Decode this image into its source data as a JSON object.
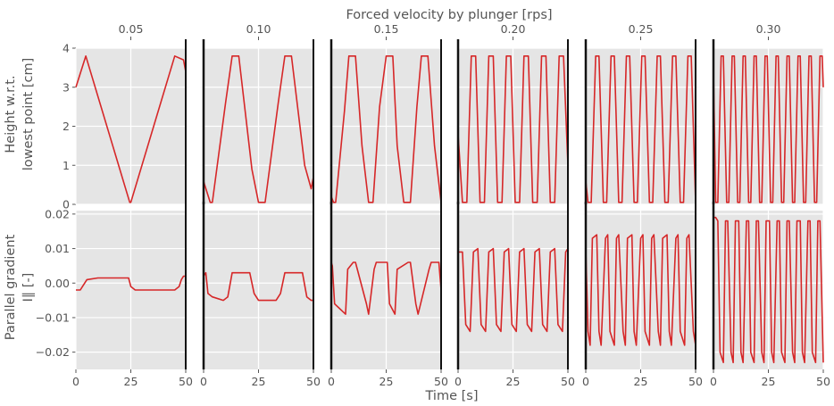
{
  "chart_data": {
    "type": "line",
    "title": "Forced velocity by plunger [rps]",
    "xlabel": "Time [s]",
    "row_ylabels": [
      [
        "Height w.r.t.",
        "lowest point [cm]"
      ],
      [
        "Parallel gradient",
        "I∥ [-]"
      ]
    ],
    "columns": [
      "0.05",
      "0.10",
      "0.15",
      "0.20",
      "0.25",
      "0.30"
    ],
    "xlim": [
      0,
      50
    ],
    "xticks": [
      "0",
      "25",
      "50"
    ],
    "height": {
      "ylim": [
        0,
        4
      ],
      "yticks": [
        "0",
        "1",
        "2",
        "3",
        "4"
      ],
      "series": [
        {
          "x": [
            0,
            4.5,
            24.5,
            25,
            45,
            49,
            50
          ],
          "y": [
            3.0,
            3.8,
            0.05,
            0.05,
            3.8,
            3.7,
            3.4
          ]
        },
        {
          "x": [
            0,
            0.5,
            3,
            4,
            10,
            13,
            16,
            22,
            25,
            28,
            34,
            37,
            40,
            46,
            49,
            50
          ],
          "y": [
            0.6,
            0.5,
            0.05,
            0.05,
            2.6,
            3.8,
            3.8,
            0.9,
            0.05,
            0.05,
            2.6,
            3.8,
            3.8,
            1.0,
            0.4,
            0.7
          ]
        },
        {
          "x": [
            0,
            1,
            2,
            6,
            8,
            11,
            14,
            17,
            19,
            22,
            25,
            28,
            30,
            33,
            36,
            39,
            41,
            44,
            47,
            50
          ],
          "y": [
            0.2,
            0.05,
            0.05,
            2.4,
            3.8,
            3.8,
            1.5,
            0.05,
            0.05,
            2.5,
            3.8,
            3.8,
            1.5,
            0.05,
            0.05,
            2.5,
            3.8,
            3.8,
            1.5,
            0.05
          ]
        },
        {
          "x": [
            0,
            2,
            4,
            6,
            8,
            10,
            12,
            14,
            16,
            18,
            20,
            22,
            24,
            26,
            28,
            30,
            32,
            34,
            36,
            38,
            40,
            42,
            44,
            46,
            48,
            50
          ],
          "y": [
            1.8,
            0.05,
            0.05,
            3.8,
            3.8,
            0.05,
            0.05,
            3.8,
            3.8,
            0.05,
            0.05,
            3.8,
            3.8,
            0.05,
            0.05,
            3.8,
            3.8,
            0.05,
            0.05,
            3.8,
            3.8,
            0.05,
            0.05,
            3.8,
            3.8,
            1.0
          ]
        },
        {
          "x": [
            0,
            1,
            2.5,
            4.5,
            6,
            8,
            9.5,
            11.5,
            13,
            15,
            16.5,
            18.5,
            20,
            22,
            23.5,
            25.5,
            27,
            29,
            30.5,
            32.5,
            34,
            36,
            37.5,
            39.5,
            41,
            43,
            44.5,
            46.5,
            48,
            50
          ],
          "y": [
            0.6,
            0.05,
            0.05,
            3.8,
            3.8,
            0.05,
            0.05,
            3.8,
            3.8,
            0.05,
            0.05,
            3.8,
            3.8,
            0.05,
            0.05,
            3.8,
            3.8,
            0.05,
            0.05,
            3.8,
            3.8,
            0.05,
            0.05,
            3.8,
            3.8,
            0.05,
            0.05,
            3.8,
            3.8,
            0.05
          ]
        },
        {
          "x": [
            0,
            1,
            2,
            3.5,
            4.5,
            6,
            7,
            8.5,
            9.5,
            11,
            12,
            13.5,
            14.5,
            16,
            17,
            18.5,
            19.5,
            21,
            22,
            23.5,
            24.5,
            26,
            27,
            28.5,
            29.5,
            31,
            32,
            33.5,
            34.5,
            36,
            37,
            38.5,
            39.5,
            41,
            42,
            43.5,
            44.5,
            46,
            47,
            48.5,
            49.5,
            50
          ],
          "y": [
            3.4,
            0.05,
            0.05,
            3.8,
            3.8,
            0.05,
            0.05,
            3.8,
            3.8,
            0.05,
            0.05,
            3.8,
            3.8,
            0.05,
            0.05,
            3.8,
            3.8,
            0.05,
            0.05,
            3.8,
            3.8,
            0.05,
            0.05,
            3.8,
            3.8,
            0.05,
            0.05,
            3.8,
            3.8,
            0.05,
            0.05,
            3.8,
            3.8,
            0.05,
            0.05,
            3.8,
            3.8,
            0.05,
            0.05,
            3.8,
            3.8,
            3.0
          ]
        }
      ]
    },
    "gradient": {
      "ylim": [
        -0.025,
        0.021
      ],
      "yticks": [
        {
          "v": 0.02,
          "label": "0.02"
        },
        {
          "v": 0.01,
          "label": "0.01"
        },
        {
          "v": 0.0,
          "label": "0.00"
        },
        {
          "v": -0.01,
          "label": "−0.01"
        },
        {
          "v": -0.02,
          "label": "−0.02"
        }
      ],
      "series": [
        {
          "x": [
            0,
            2,
            3,
            5,
            10,
            24,
            25,
            27,
            30,
            45,
            47,
            48,
            49,
            50
          ],
          "y": [
            -0.002,
            -0.002,
            -0.001,
            0.001,
            0.0015,
            0.0015,
            -0.001,
            -0.002,
            -0.002,
            -0.002,
            -0.001,
            0.001,
            0.002,
            0.002
          ]
        },
        {
          "x": [
            0,
            1,
            2,
            4,
            9,
            11,
            13,
            21,
            23,
            25,
            33,
            35,
            37,
            45,
            47,
            49,
            50
          ],
          "y": [
            0.002,
            0.003,
            -0.003,
            -0.004,
            -0.005,
            -0.004,
            0.003,
            0.003,
            -0.003,
            -0.005,
            -0.005,
            -0.003,
            0.003,
            0.003,
            -0.004,
            -0.005,
            -0.005
          ]
        },
        {
          "x": [
            0,
            0.5,
            1.5,
            6.5,
            7.5,
            10,
            11,
            16,
            17,
            19.5,
            20.5,
            25.5,
            26.5,
            29,
            30,
            35,
            36,
            38.5,
            39.5,
            44.5,
            45.5,
            49,
            50
          ],
          "y": [
            0.006,
            0.005,
            -0.006,
            -0.009,
            0.004,
            0.006,
            0.006,
            -0.006,
            -0.009,
            0.004,
            0.006,
            0.006,
            -0.006,
            -0.009,
            0.004,
            0.006,
            0.006,
            -0.006,
            -0.009,
            0.004,
            0.006,
            0.006,
            -0.002
          ]
        },
        {
          "x": [
            0,
            2,
            3.5,
            5.5,
            7,
            9,
            10.5,
            12.5,
            14,
            16,
            17.5,
            19.5,
            21,
            23,
            24.5,
            26.5,
            28,
            30,
            31.5,
            33.5,
            35,
            37,
            38.5,
            40.5,
            42,
            44,
            45.5,
            47.5,
            49,
            50
          ],
          "y": [
            0.009,
            0.009,
            -0.012,
            -0.014,
            0.009,
            0.01,
            -0.012,
            -0.014,
            0.009,
            0.01,
            -0.012,
            -0.014,
            0.009,
            0.01,
            -0.012,
            -0.014,
            0.009,
            0.01,
            -0.012,
            -0.014,
            0.009,
            0.01,
            -0.012,
            -0.014,
            0.009,
            0.01,
            -0.012,
            -0.014,
            0.009,
            0.01
          ]
        },
        {
          "x": [
            0,
            1,
            2,
            3,
            5,
            6,
            7,
            9,
            10,
            11,
            13,
            14,
            15,
            17,
            18,
            19,
            21,
            22,
            23,
            25,
            26,
            27,
            29,
            30,
            31,
            33,
            34,
            35,
            37,
            38,
            39,
            41,
            42,
            43,
            45,
            46,
            47,
            49,
            50
          ],
          "y": [
            0.01,
            -0.014,
            -0.018,
            0.013,
            0.014,
            -0.014,
            -0.018,
            0.013,
            0.014,
            -0.014,
            -0.018,
            0.013,
            0.014,
            -0.014,
            -0.018,
            0.013,
            0.014,
            -0.014,
            -0.018,
            0.013,
            0.014,
            -0.014,
            -0.018,
            0.013,
            0.014,
            -0.014,
            -0.018,
            0.013,
            0.014,
            -0.014,
            -0.018,
            0.013,
            0.014,
            -0.014,
            -0.018,
            0.013,
            0.014,
            -0.014,
            -0.018
          ]
        },
        {
          "x": [
            0,
            1,
            2,
            3,
            4.5,
            5.5,
            6.5,
            8,
            9,
            10,
            11.5,
            12.5,
            13.5,
            15,
            16,
            17,
            18.5,
            19.5,
            20.5,
            22,
            23,
            24,
            25.5,
            26.5,
            27.5,
            29,
            30,
            31,
            32.5,
            33.5,
            34.5,
            36,
            37,
            38,
            39.5,
            40.5,
            41.5,
            43,
            44,
            45,
            46.5,
            47.5,
            48.5,
            50
          ],
          "y": [
            0.019,
            0.019,
            0.018,
            -0.02,
            -0.023,
            0.018,
            0.018,
            -0.02,
            -0.023,
            0.018,
            0.018,
            -0.02,
            -0.023,
            0.018,
            0.018,
            -0.02,
            -0.023,
            0.018,
            0.018,
            -0.02,
            -0.023,
            0.018,
            0.018,
            -0.02,
            -0.023,
            0.018,
            0.018,
            -0.02,
            -0.023,
            0.018,
            0.018,
            -0.02,
            -0.023,
            0.018,
            0.018,
            -0.02,
            -0.023,
            0.018,
            0.018,
            -0.02,
            -0.023,
            0.018,
            0.018,
            -0.023
          ]
        }
      ]
    },
    "line_color": "#d62728",
    "panel_bg": "#e5e5e5",
    "grid": true
  }
}
